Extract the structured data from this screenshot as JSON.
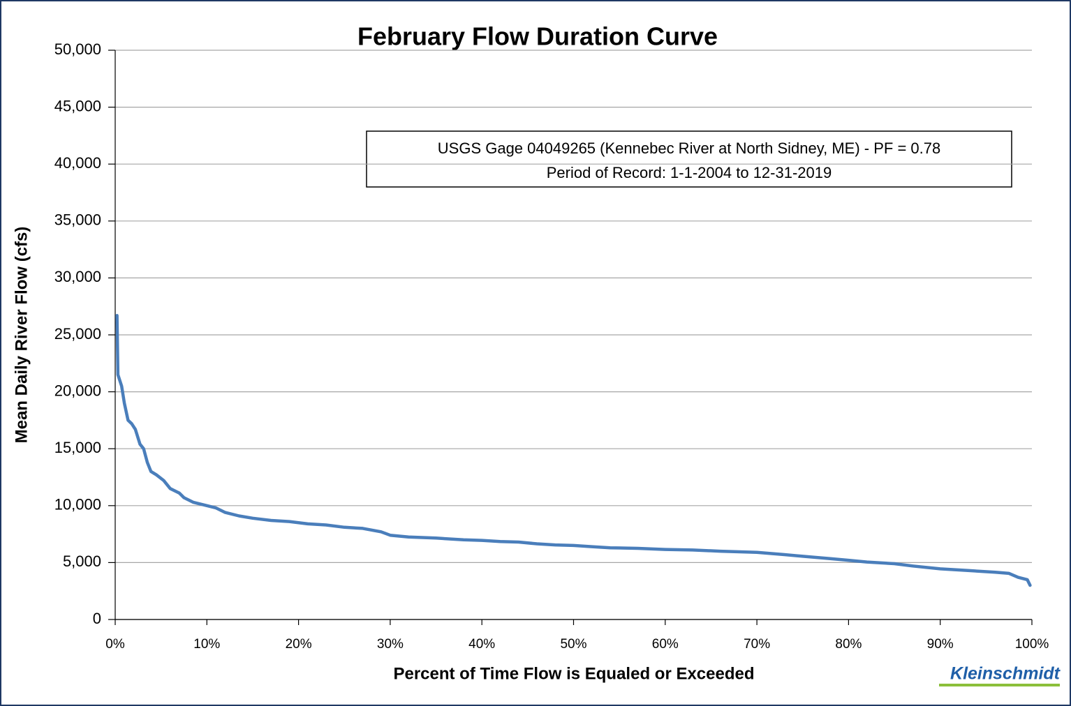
{
  "chart_data": {
    "type": "line",
    "title": "February Flow Duration Curve",
    "annotation": [
      "USGS Gage 04049265 (Kennebec River at North Sidney, ME) - PF = 0.78",
      "Period of Record: 1-1-2004 to 12-31-2019"
    ],
    "x_label": "Percent of Time Flow is  Equaled or Exceeded",
    "y_label": "Mean Daily River Flow (cfs)",
    "logo": "Kleinschmidt",
    "color": "#4a7ebb",
    "grid": true,
    "xlim": [
      0,
      100
    ],
    "ylim": [
      0,
      50000
    ],
    "xticks": [
      {
        "value": 0,
        "label": "0%"
      },
      {
        "value": 10,
        "label": "10%"
      },
      {
        "value": 20,
        "label": "20%"
      },
      {
        "value": 30,
        "label": "30%"
      },
      {
        "value": 40,
        "label": "40%"
      },
      {
        "value": 50,
        "label": "50%"
      },
      {
        "value": 60,
        "label": "60%"
      },
      {
        "value": 70,
        "label": "70%"
      },
      {
        "value": 80,
        "label": "80%"
      },
      {
        "value": 90,
        "label": "90%"
      },
      {
        "value": 100,
        "label": "100%"
      }
    ],
    "yticks": [
      0,
      {
        "value": 5000,
        "label": "5,000"
      },
      {
        "value": 10000,
        "label": "10,000"
      },
      {
        "value": 15000,
        "label": "15,000"
      },
      {
        "value": 20000,
        "label": "20,000"
      },
      {
        "value": 25000,
        "label": "25,000"
      },
      {
        "value": 30000,
        "label": "30,000"
      },
      {
        "value": 35000,
        "label": "35,000"
      },
      {
        "value": 40000,
        "label": "40,000"
      },
      {
        "value": 45000,
        "label": "45,000"
      },
      {
        "value": 50000,
        "label": "50,000"
      }
    ],
    "x": [
      0.2,
      0.3,
      0.7,
      1.0,
      1.4,
      1.8,
      2.2,
      2.7,
      3.1,
      3.5,
      3.9,
      4.5,
      5.3,
      6.0,
      7.0,
      7.5,
      8.5,
      10,
      11,
      12,
      13.5,
      15,
      17,
      19,
      21,
      23,
      25,
      27,
      29,
      30,
      32,
      35,
      38,
      40,
      42,
      44,
      46,
      48,
      50,
      52,
      54,
      57,
      60,
      63,
      66,
      70,
      73,
      75,
      78,
      80,
      82,
      85,
      87,
      90,
      93,
      96,
      97.5,
      98.5,
      99.5,
      99.8
    ],
    "values": [
      26700,
      21500,
      20500,
      19000,
      17500,
      17200,
      16700,
      15400,
      15000,
      13800,
      13000,
      12700,
      12200,
      11500,
      11100,
      10700,
      10300,
      10000,
      9800,
      9400,
      9100,
      8900,
      8700,
      8600,
      8400,
      8300,
      8100,
      8000,
      7700,
      7400,
      7250,
      7150,
      7000,
      6950,
      6850,
      6800,
      6650,
      6550,
      6500,
      6400,
      6300,
      6250,
      6150,
      6100,
      6000,
      5900,
      5700,
      5550,
      5350,
      5200,
      5050,
      4900,
      4700,
      4450,
      4300,
      4150,
      4050,
      3700,
      3500,
      3000
    ]
  }
}
